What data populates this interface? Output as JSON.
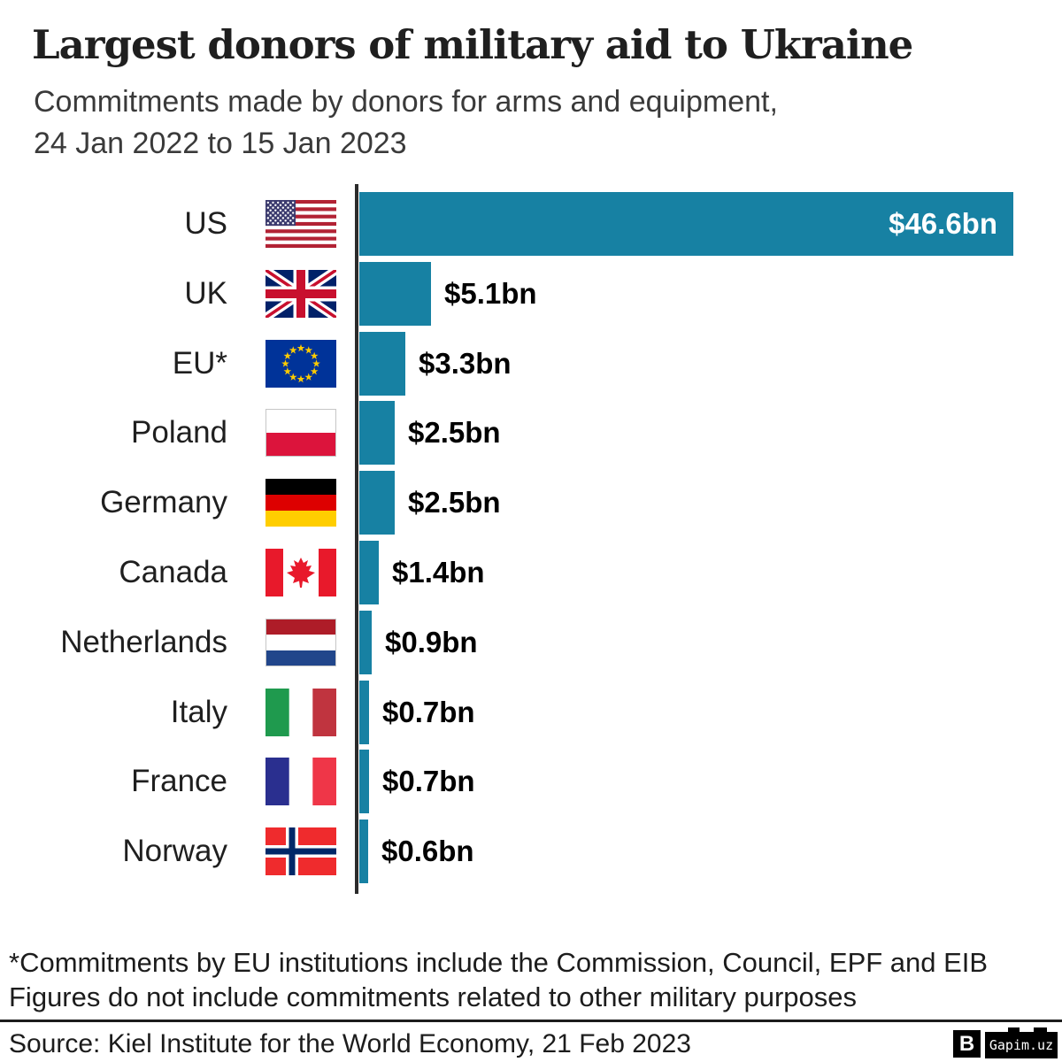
{
  "header": {
    "title": "Largest donors of military aid to Ukraine",
    "subtitle": "Commitments made by donors for arms and equipment,\n24 Jan 2022 to 15 Jan 2023"
  },
  "chart_data": {
    "type": "bar",
    "orientation": "horizontal",
    "title": "Largest donors of military aid to Ukraine",
    "categories": [
      "US",
      "UK",
      "EU*",
      "Poland",
      "Germany",
      "Canada",
      "Netherlands",
      "Italy",
      "France",
      "Norway"
    ],
    "values": [
      46.6,
      5.1,
      3.3,
      2.5,
      2.5,
      1.4,
      0.9,
      0.7,
      0.7,
      0.6
    ],
    "value_labels": [
      "$46.6bn",
      "$5.1bn",
      "$3.3bn",
      "$2.5bn",
      "$2.5bn",
      "$1.4bn",
      "$0.9bn",
      "$0.7bn",
      "$0.7bn",
      "$0.6bn"
    ],
    "flags": [
      "us",
      "uk",
      "eu",
      "pl",
      "de",
      "ca",
      "nl",
      "it",
      "fr",
      "no"
    ],
    "value_label_inside": [
      true,
      false,
      false,
      false,
      false,
      false,
      false,
      false,
      false,
      false
    ],
    "xlim": [
      0,
      46.6
    ],
    "bar_color": "#1781A3",
    "axis_color": "#2b2b2b",
    "grid": "off",
    "legend": "none"
  },
  "footnote": {
    "text": "*Commitments by EU institutions include the Commission, Council, EPF and EIB\nFigures do not include commitments related to other military purposes"
  },
  "footer": {
    "source": "Source: Kiel Institute for the World Economy, 21 Feb 2023",
    "logo_letter": "B",
    "watermark": "Gapim.uz"
  }
}
